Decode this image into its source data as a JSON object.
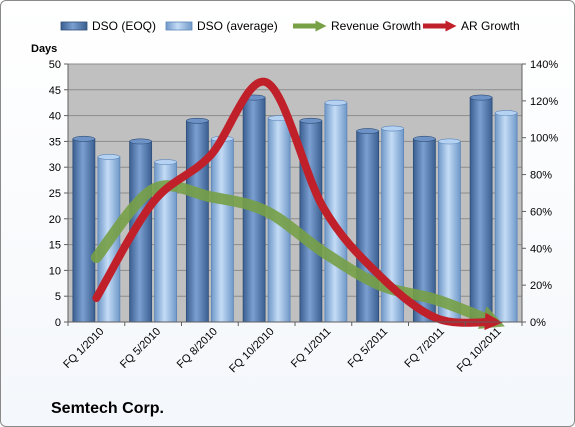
{
  "company": "Semtech Corp.",
  "colors": {
    "dso_eoq": "#4f76aa",
    "dso_average": "#8fb4df",
    "revenue_growth": "#77a047",
    "ar_growth": "#c0202a",
    "plot_background": "#c0c0c0"
  },
  "chart_data": {
    "type": "bar",
    "categories": [
      "FQ 1/2010",
      "FQ 5/2010",
      "FQ 8/2010",
      "FQ 10/2010",
      "FQ 1/2011",
      "FQ 5/2011",
      "FQ 7/2011",
      "FQ 10/2011"
    ],
    "series": [
      {
        "name": "DSO (EOQ)",
        "type": "bar",
        "axis": "left",
        "values": [
          35.5,
          35,
          39,
          43.5,
          39,
          37,
          35.5,
          43.5
        ]
      },
      {
        "name": "DSO (average)",
        "type": "bar",
        "axis": "left",
        "values": [
          32,
          31,
          35.5,
          39.5,
          42.5,
          37.5,
          35,
          40.5
        ]
      },
      {
        "name": "Revenue Growth",
        "type": "line",
        "axis": "right",
        "values": [
          35,
          72,
          68,
          60,
          38,
          20,
          12,
          0
        ]
      },
      {
        "name": "AR Growth",
        "type": "line",
        "axis": "right",
        "values": [
          13,
          65,
          90,
          130,
          62,
          25,
          2,
          0
        ]
      }
    ],
    "ylabel": "Days",
    "ylim": [
      0,
      50
    ],
    "yticks": [
      "0",
      "5",
      "10",
      "15",
      "20",
      "25",
      "30",
      "35",
      "40",
      "45",
      "50"
    ],
    "y2lim": [
      0,
      140
    ],
    "y2ticks": [
      "0%",
      "20%",
      "40%",
      "60%",
      "80%",
      "100%",
      "120%",
      "140%"
    ],
    "grid": true,
    "legend_position": "top"
  }
}
